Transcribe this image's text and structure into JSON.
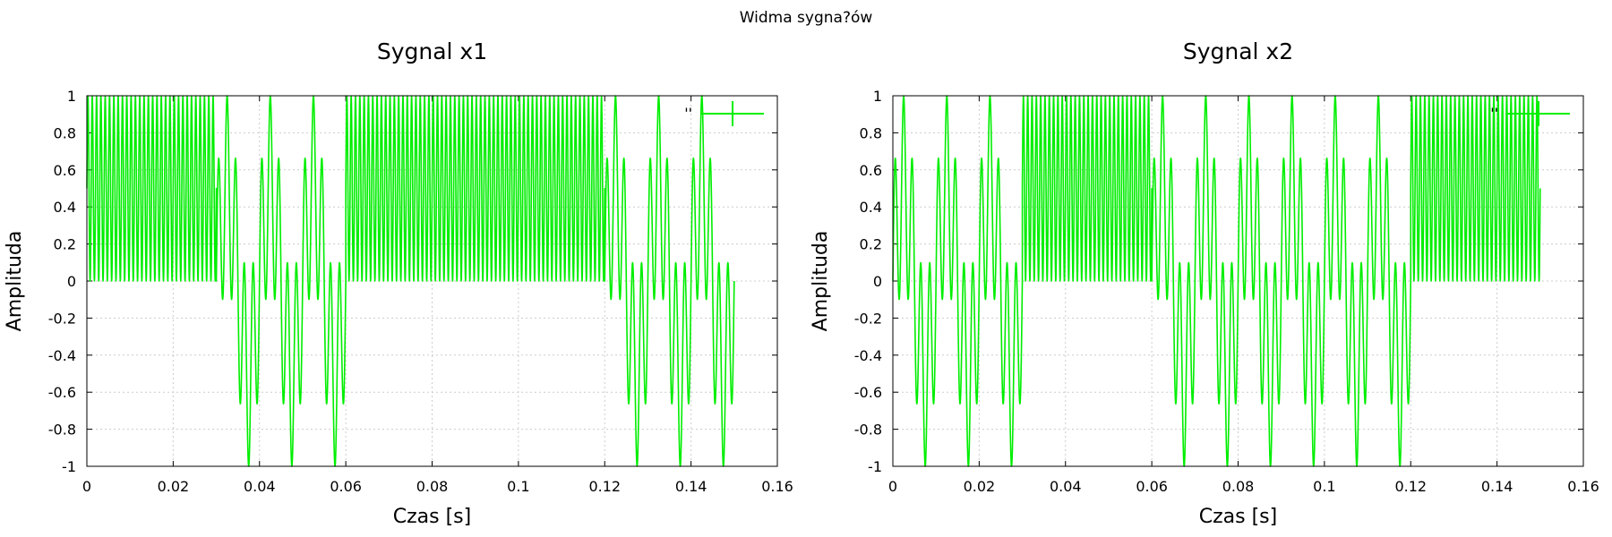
{
  "figure": {
    "title": "Widma sygna?ów"
  },
  "chart_data": [
    {
      "type": "line",
      "title": "Sygnal x1",
      "xlabel": "Czas [s]",
      "ylabel": "Amplituda",
      "xlim": [
        0,
        0.16
      ],
      "ylim": [
        -1,
        1
      ],
      "xticks": [
        "0",
        "0.02",
        "0.04",
        "0.06",
        "0.08",
        "0.1",
        "0.12",
        "0.14",
        "0.16"
      ],
      "yticks": [
        "-1",
        "-0.8",
        "-0.6",
        "-0.4",
        "-0.2",
        "0",
        "0.2",
        "0.4",
        "0.6",
        "0.8",
        "1"
      ],
      "grid": true,
      "legend": "top-right",
      "series": [
        {
          "legend_label": "''",
          "color": "#00ee00",
          "segments": [
            {
              "t0": 0.0,
              "t1": 0.03,
              "form": "0.5+0.5*sin(2*pi*f*t)",
              "freq_hz": 1000
            },
            {
              "t0": 0.03,
              "t1": 0.06,
              "form": "beat of 100 Hz and 500 Hz sines",
              "freqs_hz": [
                100,
                500
              ]
            },
            {
              "t0": 0.06,
              "t1": 0.12,
              "form": "0.5+0.5*sin(2*pi*f*t)",
              "freq_hz": 1000
            },
            {
              "t0": 0.12,
              "t1": 0.15,
              "form": "beat of 100 Hz and 500 Hz sines",
              "freqs_hz": [
                100,
                500
              ]
            }
          ]
        }
      ]
    },
    {
      "type": "line",
      "title": "Sygnal x2",
      "xlabel": "Czas [s]",
      "ylabel": "Amplituda",
      "xlim": [
        0,
        0.16
      ],
      "ylim": [
        -1,
        1
      ],
      "xticks": [
        "0",
        "0.02",
        "0.04",
        "0.06",
        "0.08",
        "0.1",
        "0.12",
        "0.14",
        "0.16"
      ],
      "yticks": [
        "-1",
        "-0.8",
        "-0.6",
        "-0.4",
        "-0.2",
        "0",
        "0.2",
        "0.4",
        "0.6",
        "0.8",
        "1"
      ],
      "grid": true,
      "legend": "top-right",
      "series": [
        {
          "legend_label": "''",
          "color": "#00ee00",
          "segments": [
            {
              "t0": 0.0,
              "t1": 0.03,
              "form": "beat of 100 Hz and 500 Hz sines",
              "freqs_hz": [
                100,
                500
              ]
            },
            {
              "t0": 0.03,
              "t1": 0.06,
              "form": "0.5+0.5*sin(2*pi*f*t)",
              "freq_hz": 1000
            },
            {
              "t0": 0.06,
              "t1": 0.12,
              "form": "beat of 100 Hz and 500 Hz sines",
              "freqs_hz": [
                100,
                500
              ]
            },
            {
              "t0": 0.12,
              "t1": 0.15,
              "form": "0.5+0.5*sin(2*pi*f*t)",
              "freq_hz": 1000
            }
          ]
        }
      ]
    }
  ]
}
